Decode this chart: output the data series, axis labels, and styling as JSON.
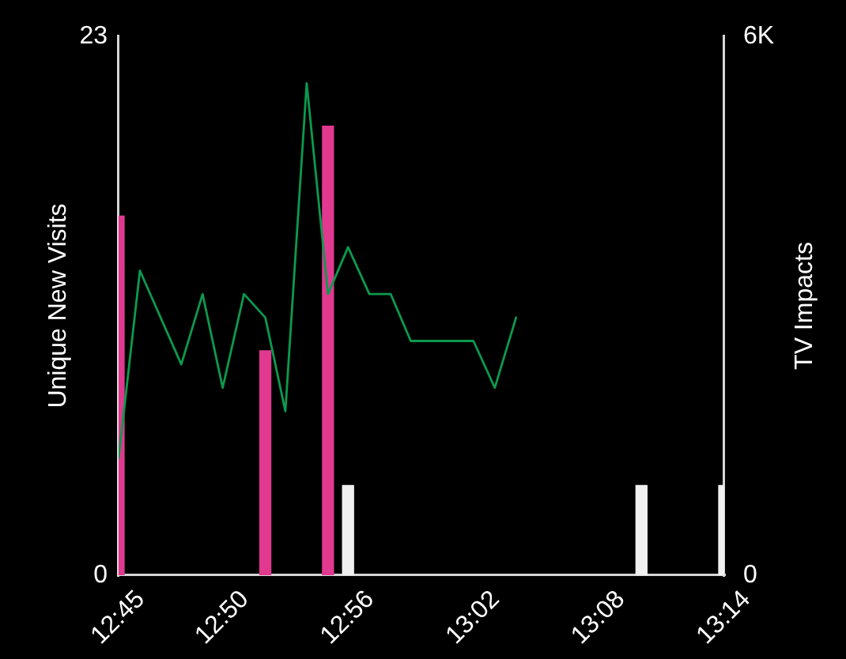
{
  "chart_data": {
    "type": "bar",
    "ylabel": "Unique New Visits",
    "y2label": "TV Impacts",
    "xlim": [
      12.75,
      13.233
    ],
    "xticks": [
      {
        "value": 12.75,
        "label": "12:45"
      },
      {
        "value": 12.833,
        "label": "12:50"
      },
      {
        "value": 12.933,
        "label": "12:56"
      },
      {
        "value": 13.033,
        "label": "13:02"
      },
      {
        "value": 13.133,
        "label": "13:08"
      },
      {
        "value": 13.233,
        "label": "13:14"
      }
    ],
    "ylim": [
      0,
      23
    ],
    "yticks": [
      0,
      23
    ],
    "y2lim": [
      0,
      6000
    ],
    "y2ticks": [
      0,
      {
        "value": 6000,
        "label": "6K"
      }
    ],
    "grid": false,
    "legend": false,
    "marker": "none",
    "line_style": "solid",
    "series": [
      {
        "type": "line",
        "color": "#0c9a4e",
        "x": [
          12.75,
          12.767,
          12.8,
          12.817,
          12.833,
          12.85,
          12.867,
          12.883,
          12.9,
          12.917,
          12.933,
          12.95,
          12.967,
          12.983,
          13,
          13.017,
          13.033,
          13.05,
          13.067
        ],
        "values": [
          5,
          13,
          9,
          12,
          8,
          12,
          11,
          7,
          21,
          12,
          14,
          12,
          12,
          10,
          10,
          10,
          10,
          8,
          11
        ]
      },
      {
        "axis": "y2",
        "color": "#e0398f",
        "x": [
          12.75,
          12.867,
          12.917
        ],
        "values": [
          4000,
          2500,
          5000
        ]
      },
      {
        "axis": "y2",
        "color": "#f0f0f0",
        "x": [
          12.933,
          13.167,
          13.233
        ],
        "values": [
          1000,
          1000,
          1000
        ]
      }
    ]
  }
}
